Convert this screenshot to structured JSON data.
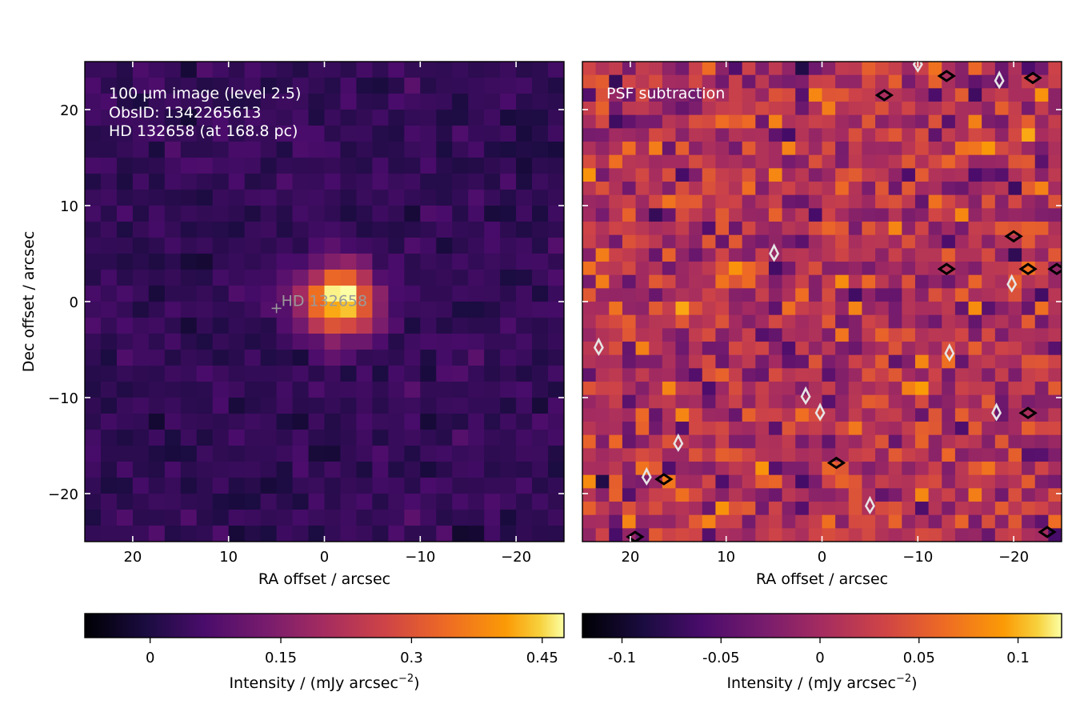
{
  "chart_data": [
    {
      "type": "heatmap",
      "panel": "left",
      "colormap": "inferno",
      "grid": {
        "nx": 30,
        "ny": 30,
        "x_range": [
          25,
          -25
        ],
        "y_range": [
          -25,
          25
        ]
      },
      "xlabel": "RA offset / arcsec",
      "ylabel": "Dec offset / arcsec",
      "xlim": [
        25,
        -25
      ],
      "ylim": [
        -25,
        25
      ],
      "xticks": [
        20,
        10,
        0,
        -10,
        -20
      ],
      "xtick_labels": [
        "20",
        "10",
        "0",
        "−10",
        "−20"
      ],
      "yticks": [
        20,
        10,
        0,
        -10,
        -20
      ],
      "ytick_labels": [
        "20",
        "10",
        "0",
        "−10",
        "−20"
      ],
      "annotation_lines": [
        "100 µm image (level 2.5)",
        "ObsID: 1342265613",
        "HD 132658 (at 168.8 pc)"
      ],
      "source_marker": {
        "x": 5,
        "y": -0.7,
        "label": "HD 132658"
      },
      "peak": {
        "x": -1.5,
        "y": 0,
        "value": 0.47
      },
      "background_level": 0.03,
      "noise_level": 0.03,
      "colorbar": {
        "vmin": -0.075,
        "vmax": 0.475,
        "ticks": [
          0,
          0.15,
          0.3,
          0.45
        ],
        "tick_labels": [
          "0",
          "0.15",
          "0.3",
          "0.45"
        ],
        "label_main": "Intensity / (mJy arcsec",
        "label_sup": "−2",
        "label_end": ")"
      }
    },
    {
      "type": "heatmap",
      "panel": "right",
      "colormap": "inferno",
      "grid": {
        "nx": 36,
        "ny": 36,
        "x_range": [
          25,
          -25
        ],
        "y_range": [
          -25,
          25
        ]
      },
      "annotation": "PSF subtraction",
      "xlabel": "RA offset / arcsec",
      "xlim": [
        25,
        -25
      ],
      "ylim": [
        -25,
        25
      ],
      "xticks": [
        20,
        10,
        0,
        -10,
        -20
      ],
      "xtick_labels": [
        "20",
        "10",
        "0",
        "−10",
        "−20"
      ],
      "yticks": [
        20,
        10,
        0,
        -10,
        -20
      ],
      "noise_level": 0.045,
      "contours": {
        "positive": [
          {
            "x": -6.5,
            "y": 21.5
          },
          {
            "x": -13,
            "y": 23.5
          },
          {
            "x": -22,
            "y": 23.3
          },
          {
            "x": -20,
            "y": 6.8
          },
          {
            "x": -13,
            "y": 3.4
          },
          {
            "x": -21.5,
            "y": 3.4
          },
          {
            "x": -24.5,
            "y": 3.4
          },
          {
            "x": -21.5,
            "y": -11.6
          },
          {
            "x": -1.5,
            "y": -16.8
          },
          {
            "x": 16.5,
            "y": -18.5
          },
          {
            "x": 19.5,
            "y": -24.5
          },
          {
            "x": -23.5,
            "y": -24
          }
        ],
        "negative": [
          {
            "x": -18.5,
            "y": 23
          },
          {
            "x": -10,
            "y": 24.7
          },
          {
            "x": 5,
            "y": 5
          },
          {
            "x": -19.8,
            "y": 1.8
          },
          {
            "x": -13.3,
            "y": -5.4
          },
          {
            "x": 0.2,
            "y": -11.6
          },
          {
            "x": 1.7,
            "y": -9.9
          },
          {
            "x": -18.2,
            "y": -11.6
          },
          {
            "x": 15,
            "y": -14.8
          },
          {
            "x": 18.3,
            "y": -18.3
          },
          {
            "x": -5,
            "y": -21.3
          },
          {
            "x": 23.3,
            "y": -4.8
          }
        ]
      },
      "colorbar": {
        "vmin": -0.12,
        "vmax": 0.122,
        "ticks": [
          -0.1,
          -0.05,
          0,
          0.05,
          0.1
        ],
        "tick_labels": [
          "-0.1",
          "-0.05",
          "0",
          "0.05",
          "0.1"
        ],
        "label_main": "Intensity / (mJy arcsec",
        "label_sup": "−2",
        "label_end": ")"
      }
    }
  ]
}
